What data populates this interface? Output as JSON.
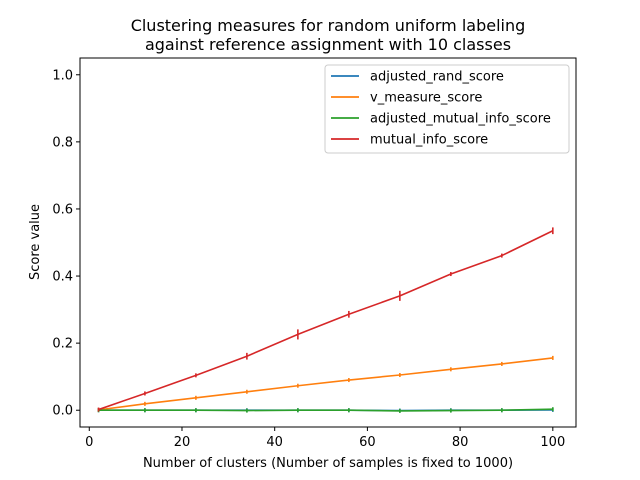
{
  "chart_data": {
    "type": "line",
    "title_line1": "Clustering measures for random uniform labeling",
    "title_line2": "against reference assignment with 10 classes",
    "xlabel": "Number of clusters (Number of samples is fixed to 1000)",
    "ylabel": "Score value",
    "xlim": [
      -2,
      105
    ],
    "ylim": [
      -0.05,
      1.05
    ],
    "xticks": [
      0,
      20,
      40,
      60,
      80,
      100
    ],
    "yticks": [
      0.0,
      0.2,
      0.4,
      0.6,
      0.8,
      1.0
    ],
    "xtick_labels": [
      "0",
      "20",
      "40",
      "60",
      "80",
      "100"
    ],
    "ytick_labels": [
      "0.0",
      "0.2",
      "0.4",
      "0.6",
      "0.8",
      "1.0"
    ],
    "grid": false,
    "legend_position": "top-right",
    "x": [
      2,
      12,
      23,
      34,
      45,
      56,
      67,
      78,
      89,
      100
    ],
    "series": [
      {
        "name": "adjusted_rand_score",
        "color": "#1f77b4",
        "values": [
          0.0,
          0.0,
          0.0,
          0.0,
          0.0,
          0.0,
          -0.001,
          0.0,
          0.0,
          0.001
        ],
        "errors": [
          0.001,
          0.001,
          0.001,
          0.001,
          0.001,
          0.001,
          0.001,
          0.001,
          0.001,
          0.001
        ]
      },
      {
        "name": "v_measure_score",
        "color": "#ff7f0e",
        "values": [
          0.001,
          0.019,
          0.037,
          0.055,
          0.073,
          0.09,
          0.105,
          0.122,
          0.138,
          0.156
        ],
        "errors": [
          0.001,
          0.002,
          0.002,
          0.003,
          0.003,
          0.003,
          0.004,
          0.003,
          0.003,
          0.003
        ]
      },
      {
        "name": "adjusted_mutual_info_score",
        "color": "#2ca02c",
        "values": [
          0.0,
          0.0,
          0.0,
          -0.001,
          0.0,
          0.0,
          -0.002,
          -0.001,
          0.0,
          0.003
        ],
        "errors": [
          0.001,
          0.001,
          0.001,
          0.002,
          0.002,
          0.002,
          0.002,
          0.002,
          0.002,
          0.002
        ]
      },
      {
        "name": "mutual_info_score",
        "color": "#d62728",
        "values": [
          0.002,
          0.05,
          0.104,
          0.161,
          0.226,
          0.286,
          0.341,
          0.406,
          0.461,
          0.535
        ],
        "errors": [
          0.001,
          0.003,
          0.005,
          0.01,
          0.015,
          0.01,
          0.015,
          0.005,
          0.005,
          0.01
        ]
      }
    ]
  }
}
